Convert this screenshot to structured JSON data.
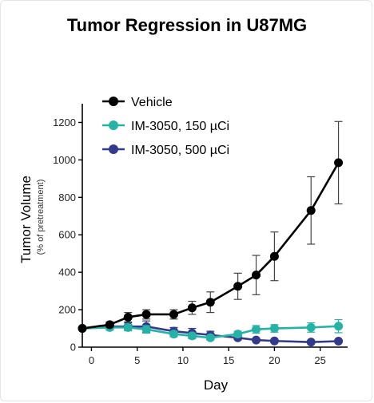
{
  "chart_data": {
    "type": "line",
    "title": "Tumor Regression in U87MG",
    "xlabel": "Day",
    "ylabel": "Tumor Volume",
    "ylabel_sub": "(% of pretreatment)",
    "xlim": [
      -1,
      28
    ],
    "ylim": [
      0,
      1300
    ],
    "xticks": [
      0,
      5,
      10,
      15,
      20,
      25
    ],
    "yticks": [
      0,
      200,
      400,
      600,
      800,
      1000,
      1200
    ],
    "legend_position": "top-left",
    "grid": false,
    "series": [
      {
        "name": "Vehicle",
        "color": "#000000",
        "points": [
          {
            "x": -1,
            "y": 100,
            "err": 0
          },
          {
            "x": 2,
            "y": 120,
            "err": 15
          },
          {
            "x": 4,
            "y": 160,
            "err": 25
          },
          {
            "x": 6,
            "y": 175,
            "err": 25
          },
          {
            "x": 9,
            "y": 175,
            "err": 25
          },
          {
            "x": 11,
            "y": 210,
            "err": 35
          },
          {
            "x": 13,
            "y": 240,
            "err": 55
          },
          {
            "x": 16,
            "y": 325,
            "err": 70
          },
          {
            "x": 18,
            "y": 385,
            "err": 105
          },
          {
            "x": 20,
            "y": 485,
            "err": 130
          },
          {
            "x": 24,
            "y": 730,
            "err": 180
          },
          {
            "x": 27,
            "y": 985,
            "err": 220
          }
        ]
      },
      {
        "name": "IM-3050, 150 µCi",
        "color": "#24b3a5",
        "points": [
          {
            "x": -1,
            "y": 100,
            "err": 0
          },
          {
            "x": 2,
            "y": 105,
            "err": 15
          },
          {
            "x": 4,
            "y": 105,
            "err": 18
          },
          {
            "x": 6,
            "y": 95,
            "err": 20
          },
          {
            "x": 9,
            "y": 70,
            "err": 15
          },
          {
            "x": 11,
            "y": 60,
            "err": 15
          },
          {
            "x": 13,
            "y": 50,
            "err": 12
          },
          {
            "x": 16,
            "y": 70,
            "err": 15
          },
          {
            "x": 18,
            "y": 95,
            "err": 20
          },
          {
            "x": 20,
            "y": 100,
            "err": 20
          },
          {
            "x": 24,
            "y": 105,
            "err": 25
          },
          {
            "x": 27,
            "y": 112,
            "err": 35
          }
        ]
      },
      {
        "name": "IM-3050, 500 µCi",
        "color": "#333a8c",
        "points": [
          {
            "x": -1,
            "y": 100,
            "err": 0
          },
          {
            "x": 2,
            "y": 110,
            "err": 15
          },
          {
            "x": 4,
            "y": 110,
            "err": 20
          },
          {
            "x": 6,
            "y": 110,
            "err": 30
          },
          {
            "x": 9,
            "y": 85,
            "err": 20
          },
          {
            "x": 11,
            "y": 75,
            "err": 25
          },
          {
            "x": 13,
            "y": 65,
            "err": 20
          },
          {
            "x": 16,
            "y": 50,
            "err": 10
          },
          {
            "x": 18,
            "y": 38,
            "err": 8
          },
          {
            "x": 20,
            "y": 33,
            "err": 8
          },
          {
            "x": 24,
            "y": 27,
            "err": 6
          },
          {
            "x": 27,
            "y": 32,
            "err": 6
          }
        ]
      }
    ]
  }
}
